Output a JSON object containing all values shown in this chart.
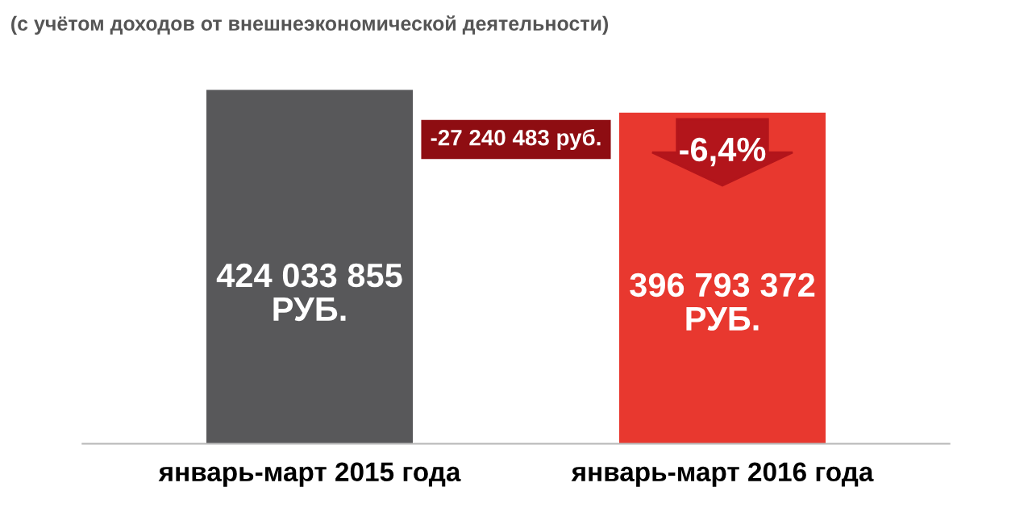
{
  "chart_data": {
    "type": "bar",
    "subtitle": "(с учётом доходов от внешнеэкономической деятельности)",
    "categories": [
      "январь-март 2015 года",
      "январь-март 2016 года"
    ],
    "values": [
      424033855,
      396793372
    ],
    "colors": [
      "#58585a",
      "#e8382f"
    ],
    "value_labels": [
      "424 033 855\nРУБ.",
      "396 793 372\nРУБ."
    ],
    "annotations": [
      "-27 240 483 руб.",
      "-6,4%"
    ],
    "tick_labels": "x",
    "grid": false,
    "legend": false
  }
}
